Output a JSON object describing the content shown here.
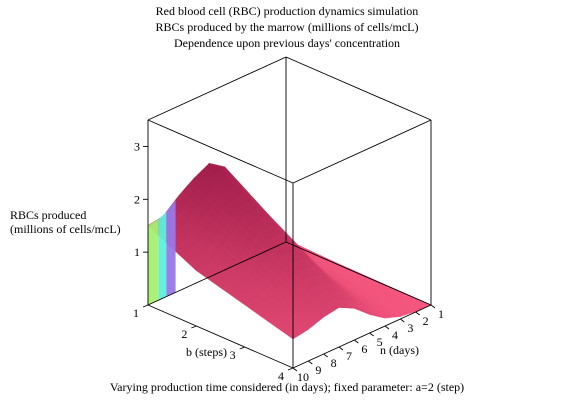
{
  "chart_data": {
    "type": "surface3d",
    "title": [
      "Red blood cell (RBC) production dynamics simulation",
      "RBCs produced by the marrow (millions of cells/mcL)",
      "Dependence upon previous days' concentration"
    ],
    "zlabel": [
      "RBCs produced",
      "(millions of cells/mcL)"
    ],
    "blabel": "b (steps)",
    "nlabel": "n (days)",
    "caption": "Varying production time considered (in days); fixed parameter: a=2 (step)",
    "b_ticks": [
      "1",
      "2",
      "3",
      "4"
    ],
    "n_ticks": [
      "1",
      "2",
      "3",
      "4",
      "5",
      "6",
      "7",
      "8",
      "9",
      "10"
    ],
    "z_ticks": [
      "1",
      "2",
      "3"
    ],
    "b_range": [
      1,
      4
    ],
    "n_range": [
      1,
      10
    ],
    "z_range": [
      0,
      3.5
    ],
    "surface_rows": [
      {
        "n": 1,
        "values": [
          0.05,
          0.02,
          0.01,
          0.0
        ]
      },
      {
        "n": 2,
        "values": [
          0.25,
          0.1,
          0.04,
          0.01
        ]
      },
      {
        "n": 3,
        "values": [
          0.7,
          0.35,
          0.15,
          0.05
        ]
      },
      {
        "n": 4,
        "values": [
          1.4,
          0.8,
          0.4,
          0.15
        ]
      },
      {
        "n": 5,
        "values": [
          1.95,
          1.35,
          0.8,
          0.35
        ]
      },
      {
        "n": 6,
        "values": [
          2.15,
          1.7,
          1.15,
          0.6
        ]
      },
      {
        "n": 7,
        "values": [
          2.0,
          1.65,
          1.2,
          0.75
        ]
      },
      {
        "n": 8,
        "values": [
          1.8,
          1.35,
          1.0,
          0.7
        ]
      },
      {
        "n": 9,
        "values": [
          1.55,
          1.1,
          0.85,
          0.6
        ]
      },
      {
        "n": 10,
        "values": [
          1.5,
          1.05,
          0.8,
          0.55
        ]
      }
    ],
    "colors": {
      "surface_low": "#f4567e",
      "surface_high": "#a01c4a",
      "edge_green": "#a6f070",
      "edge_cyan": "#5cf0e0",
      "edge_purple": "#9878e8",
      "box": "#000000"
    }
  }
}
